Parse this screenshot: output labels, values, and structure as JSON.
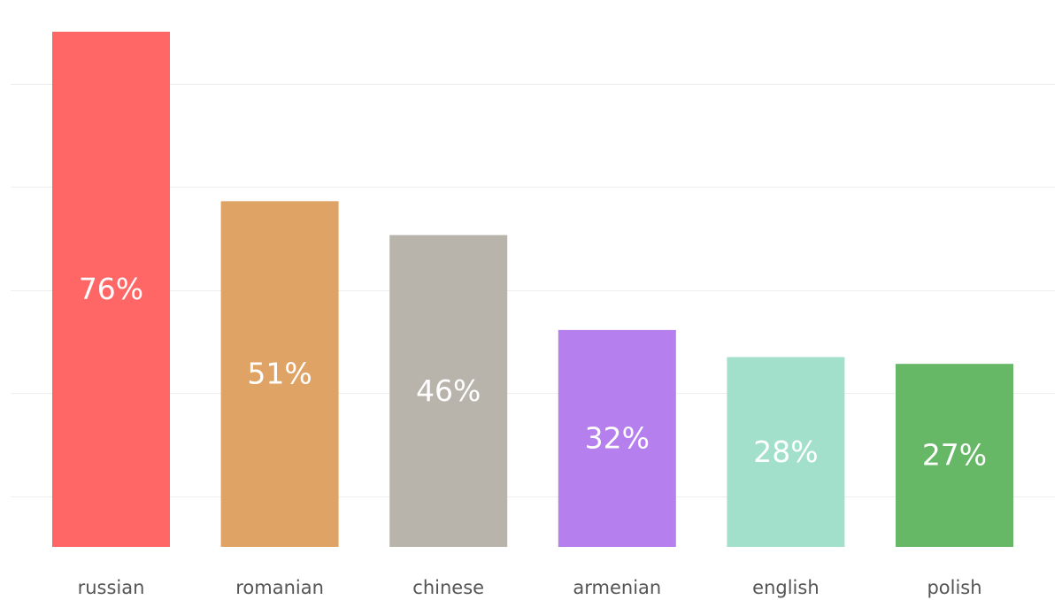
{
  "chart_data": {
    "type": "bar",
    "title": "",
    "xlabel": "",
    "ylabel": "",
    "categories": [
      "russian",
      "romanian",
      "chinese",
      "armenian",
      "english",
      "polish"
    ],
    "values": [
      76,
      51,
      46,
      32,
      28,
      27
    ],
    "value_labels": [
      "76%",
      "51%",
      "46%",
      "32%",
      "28%",
      "27%"
    ],
    "colors": [
      "#ff6666",
      "#e0a366",
      "#b8b3ab",
      "#b57fee",
      "#a3e0cb",
      "#66b866"
    ],
    "ylim": [
      0,
      80
    ],
    "grid": true,
    "legend": "none"
  }
}
